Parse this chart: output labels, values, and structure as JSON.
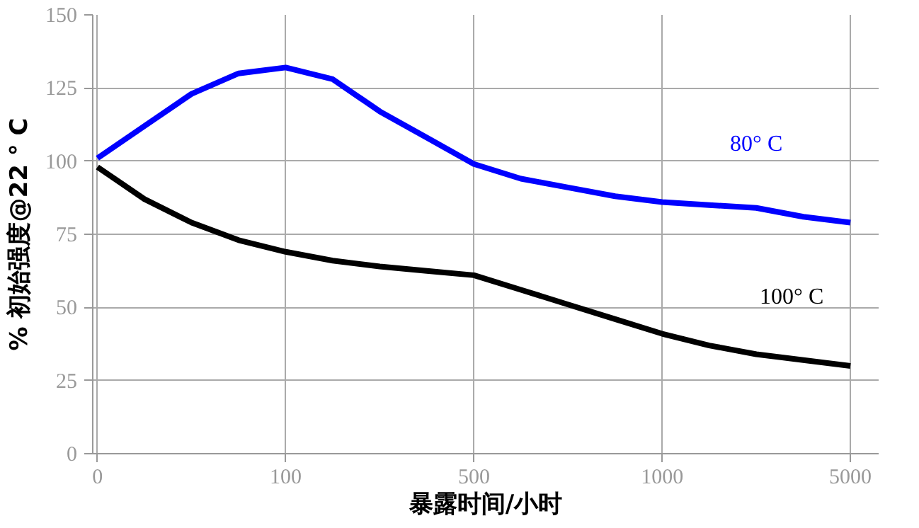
{
  "chart_data": {
    "type": "line",
    "xlabel": "暴露时间/小时",
    "ylabel": "% 初始强度@22 ° C",
    "categories": [
      "0",
      null,
      null,
      null,
      "100",
      null,
      null,
      null,
      "500",
      null,
      null,
      null,
      "1000",
      null,
      null,
      null,
      "5000"
    ],
    "ylim": [
      0,
      150
    ],
    "yticks": [
      0,
      25,
      50,
      75,
      100,
      125,
      150
    ],
    "grid": true,
    "legend": false,
    "marker": "none",
    "line_style": "solid",
    "series": [
      {
        "name": "80° C",
        "color": "#0000ff",
        "values": [
          101,
          112,
          123,
          130,
          132,
          128,
          117,
          108,
          99,
          94,
          91,
          88,
          86,
          85,
          84,
          81,
          79
        ]
      },
      {
        "name": "100° C",
        "color": "#000000",
        "values": [
          98,
          87,
          79,
          73,
          69,
          66,
          64,
          62.5,
          61,
          56,
          51,
          46,
          41,
          37,
          34,
          32,
          30
        ]
      }
    ]
  }
}
